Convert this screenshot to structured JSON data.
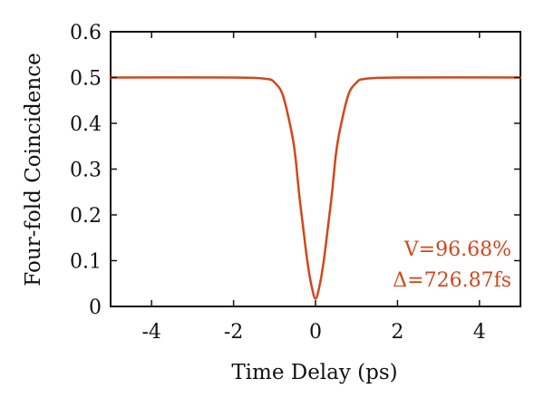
{
  "chart_data": {
    "type": "line",
    "title": "",
    "xlabel": "Time Delay (ps)",
    "ylabel": "Four-fold Coincidence",
    "xlim": [
      -5,
      5
    ],
    "ylim": [
      0,
      0.6
    ],
    "x_ticks": [
      -4,
      -2,
      0,
      2,
      4
    ],
    "y_ticks": [
      0,
      0.1,
      0.2,
      0.3,
      0.4,
      0.5,
      0.6
    ],
    "x_tick_labels": [
      "-4",
      "-2",
      "0",
      "2",
      "4"
    ],
    "y_tick_labels": [
      "0",
      "0.1",
      "0.2",
      "0.3",
      "0.4",
      "0.5",
      "0.6"
    ],
    "grid": false,
    "legend": "none",
    "colors": {
      "line": "#d3461a",
      "annotation": "#d3461a",
      "axis": "#111111"
    },
    "series": [
      {
        "x": [
          -5,
          -2,
          -1.2,
          -1.0,
          -0.8,
          -0.6,
          -0.5,
          -0.4,
          -0.3,
          -0.2,
          -0.1,
          0,
          0.1,
          0.2,
          0.3,
          0.4,
          0.5,
          0.6,
          0.8,
          1.0,
          1.2,
          2,
          5
        ],
        "y": [
          0.5,
          0.5,
          0.497,
          0.489,
          0.462,
          0.388,
          0.334,
          0.246,
          0.171,
          0.099,
          0.046,
          0.017,
          0.046,
          0.099,
          0.171,
          0.246,
          0.334,
          0.388,
          0.462,
          0.489,
          0.497,
          0.5,
          0.5
        ]
      }
    ],
    "annotations": [
      "V=96.68%",
      "Δ=726.87fs"
    ]
  }
}
